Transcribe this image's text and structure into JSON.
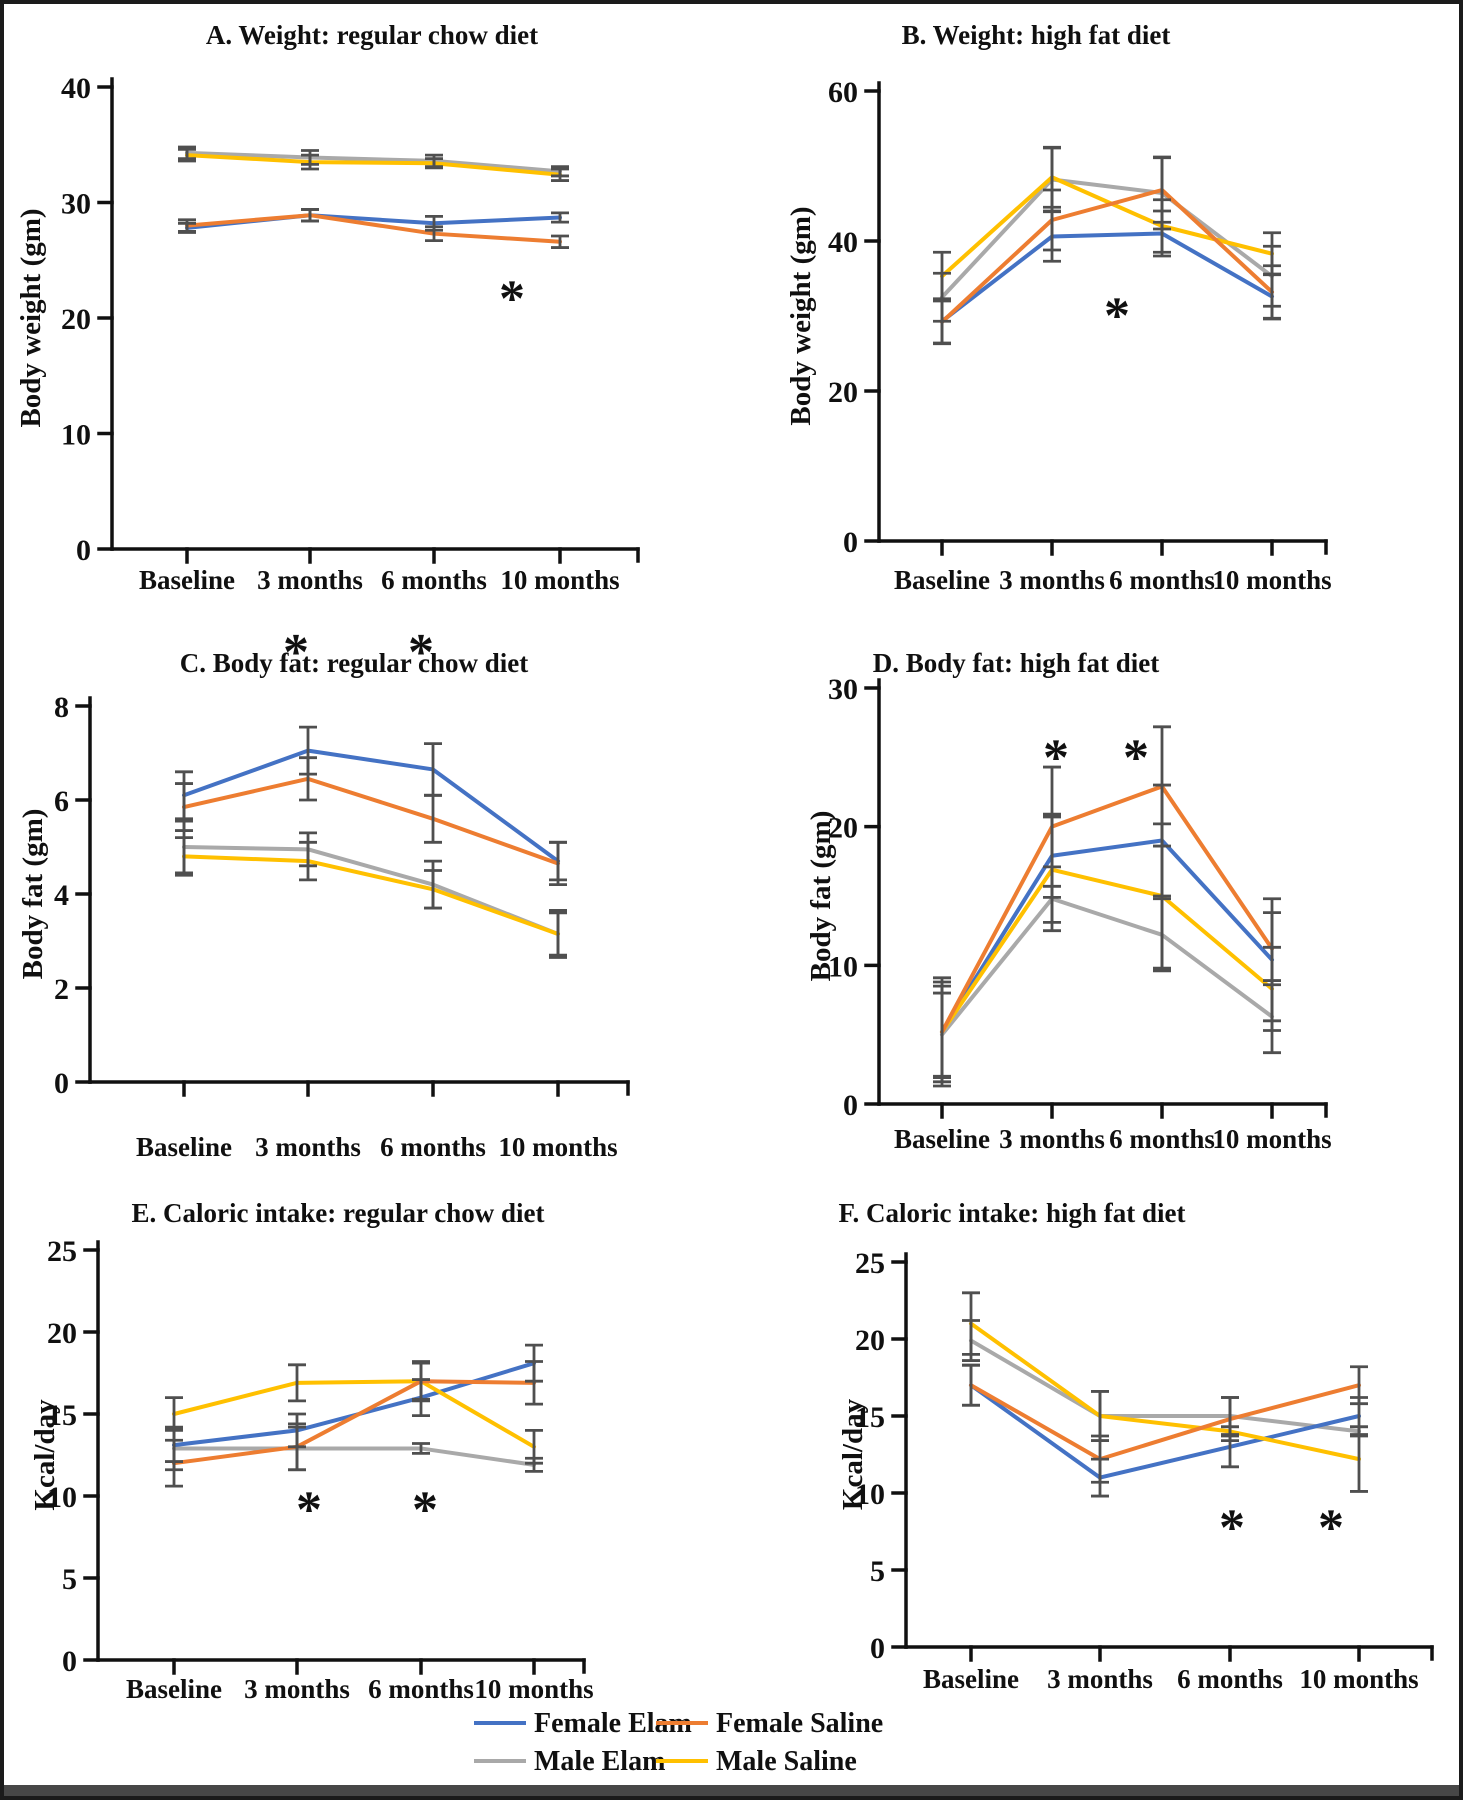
{
  "legend": {
    "items": [
      {
        "label": "Female Elam",
        "color": "#4472C4"
      },
      {
        "label": "Female Saline",
        "color": "#ED7D31"
      },
      {
        "label": "Male Elam",
        "color": "#A9A9A9"
      },
      {
        "label": "Male Saline",
        "color": "#FFC000"
      }
    ]
  },
  "chart_data": [
    {
      "id": "A",
      "type": "line",
      "title": "A. Weight: regular chow diet",
      "ylabel": "Body weight (gm)",
      "xlabel": "",
      "categories": [
        "Baseline",
        "3 months",
        "6 months",
        "10 months"
      ],
      "ylim": [
        0,
        40
      ],
      "ytick_step": 10,
      "grid": false,
      "legend_position": "none",
      "series": [
        {
          "name": "Female Elam",
          "color": "#4472C4",
          "values": [
            27.8,
            28.9,
            28.2,
            28.7
          ],
          "errors": [
            0.4,
            0.5,
            0.6,
            0.4
          ]
        },
        {
          "name": "Female Saline",
          "color": "#ED7D31",
          "values": [
            28.0,
            28.9,
            27.3,
            26.6
          ],
          "errors": [
            0.5,
            0.5,
            0.6,
            0.5
          ]
        },
        {
          "name": "Male Elam",
          "color": "#A9A9A9",
          "values": [
            34.3,
            33.9,
            33.6,
            32.7
          ],
          "errors": [
            0.5,
            0.6,
            0.5,
            0.4
          ]
        },
        {
          "name": "Male Saline",
          "color": "#FFC000",
          "values": [
            34.1,
            33.5,
            33.4,
            32.4
          ],
          "errors": [
            0.5,
            0.6,
            0.4,
            0.5
          ]
        }
      ],
      "significance_asterisks": [
        {
          "category": "10 months",
          "y": 22.3
        }
      ]
    },
    {
      "id": "B",
      "type": "line",
      "title": "B. Weight: high fat diet",
      "ylabel": "Body weight (gm)",
      "xlabel": "",
      "categories": [
        "Baseline",
        "3 months",
        "6 months",
        "10 months"
      ],
      "ylim": [
        0,
        60
      ],
      "ytick_step": 20,
      "grid": false,
      "legend_position": "none",
      "series": [
        {
          "name": "Female Elam",
          "color": "#4472C4",
          "values": [
            29.3,
            40.6,
            41.0,
            32.6
          ],
          "errors": [
            3.0,
            3.3,
            3.0,
            3.0
          ]
        },
        {
          "name": "Female Saline",
          "color": "#ED7D31",
          "values": [
            29.2,
            42.8,
            46.8,
            33.2
          ],
          "errors": [
            2.8,
            4.0,
            4.3,
            3.5
          ]
        },
        {
          "name": "Male Elam",
          "color": "#A9A9A9",
          "values": [
            32.5,
            48.2,
            46.4,
            35.3
          ],
          "errors": [
            3.2,
            4.2,
            4.8,
            4.0
          ]
        },
        {
          "name": "Male Saline",
          "color": "#FFC000",
          "values": [
            35.3,
            48.5,
            42.0,
            38.3
          ],
          "errors": [
            3.2,
            4.0,
            3.5,
            2.8
          ]
        }
      ],
      "significance_asterisks": [
        {
          "category": "6 months",
          "y": 31.0
        }
      ]
    },
    {
      "id": "C",
      "type": "line",
      "title": "C. Body fat: regular chow diet",
      "ylabel": "Body fat (gm)",
      "xlabel": "",
      "categories": [
        "Baseline",
        "3 months",
        "6 months",
        "10 months"
      ],
      "ylim": [
        0,
        8
      ],
      "ytick_step": 2,
      "grid": false,
      "legend_position": "none",
      "series": [
        {
          "name": "Female Elam",
          "color": "#4472C4",
          "values": [
            6.1,
            7.05,
            6.65,
            4.7
          ],
          "errors": [
            0.5,
            0.5,
            0.55,
            0.4
          ]
        },
        {
          "name": "Female Saline",
          "color": "#ED7D31",
          "values": [
            5.85,
            6.45,
            5.6,
            4.65
          ],
          "errors": [
            0.5,
            0.45,
            0.5,
            0.45
          ]
        },
        {
          "name": "Male Elam",
          "color": "#A9A9A9",
          "values": [
            5.0,
            4.95,
            4.2,
            3.15
          ],
          "errors": [
            0.55,
            0.35,
            0.5,
            0.5
          ]
        },
        {
          "name": "Male Saline",
          "color": "#FFC000",
          "values": [
            4.8,
            4.7,
            4.1,
            3.15
          ],
          "errors": [
            0.4,
            0.4,
            0.4,
            0.45
          ]
        }
      ],
      "significance_asterisks": [
        {
          "category": "3 months",
          "y": 9.3
        },
        {
          "category": "6 months",
          "y": 9.3
        }
      ]
    },
    {
      "id": "D",
      "type": "line",
      "title": "D. Body fat: high fat diet",
      "ylabel": "Body fat (gm)",
      "xlabel": "",
      "categories": [
        "Baseline",
        "3 months",
        "6 months",
        "10 months"
      ],
      "ylim": [
        0,
        30
      ],
      "ytick_step": 10,
      "grid": false,
      "legend_position": "none",
      "series": [
        {
          "name": "Female Elam",
          "color": "#4472C4",
          "values": [
            5.2,
            17.9,
            19.0,
            10.4
          ],
          "errors": [
            3.3,
            3.0,
            4.0,
            4.4
          ]
        },
        {
          "name": "Female Saline",
          "color": "#ED7D31",
          "values": [
            5.2,
            20.0,
            22.9,
            11.2
          ],
          "errors": [
            3.9,
            4.3,
            4.3,
            2.6
          ]
        },
        {
          "name": "Male Elam",
          "color": "#A9A9A9",
          "values": [
            5.0,
            14.8,
            12.2,
            6.3
          ],
          "errors": [
            3.0,
            2.3,
            2.6,
            2.6
          ]
        },
        {
          "name": "Male Saline",
          "color": "#FFC000",
          "values": [
            5.2,
            16.9,
            15.0,
            8.3
          ],
          "errors": [
            3.6,
            3.8,
            5.2,
            3.0
          ]
        }
      ],
      "significance_asterisks": [
        {
          "category": "3 months",
          "y": 25.5
        },
        {
          "category": "6 months",
          "y": 25.5
        }
      ]
    },
    {
      "id": "E",
      "type": "line",
      "title": "E. Caloric intake: regular chow diet",
      "ylabel": "Kcal/day",
      "xlabel": "",
      "categories": [
        "Baseline",
        "3 months",
        "6 months",
        "10 months"
      ],
      "ylim": [
        0,
        25
      ],
      "ytick_step": 5,
      "grid": false,
      "legend_position": "none",
      "series": [
        {
          "name": "Female Elam",
          "color": "#4472C4",
          "values": [
            13.1,
            14.0,
            16.0,
            18.1
          ],
          "errors": [
            1.0,
            1.0,
            1.1,
            1.1
          ]
        },
        {
          "name": "Female Saline",
          "color": "#ED7D31",
          "values": [
            12.0,
            13.0,
            17.0,
            16.9
          ],
          "errors": [
            1.4,
            1.4,
            1.2,
            1.3
          ]
        },
        {
          "name": "Male Elam",
          "color": "#A9A9A9",
          "values": [
            12.9,
            12.9,
            12.9,
            11.9
          ],
          "errors": [
            1.3,
            1.3,
            0.3,
            0.4
          ]
        },
        {
          "name": "Male Saline",
          "color": "#FFC000",
          "values": [
            15.0,
            16.9,
            17.0,
            13.0
          ],
          "errors": [
            1.0,
            1.1,
            1.1,
            1.0
          ]
        }
      ],
      "significance_asterisks": [
        {
          "category": "3 months",
          "y": 9.6
        },
        {
          "category": "6 months",
          "y": 9.6
        }
      ]
    },
    {
      "id": "F",
      "type": "line",
      "title": "F. Caloric intake: high fat diet",
      "ylabel": "Kcal/day",
      "xlabel": "",
      "categories": [
        "Baseline",
        "3 months",
        "6 months",
        "10 months"
      ],
      "ylim": [
        0,
        25
      ],
      "ytick_step": 5,
      "grid": false,
      "legend_position": "none",
      "series": [
        {
          "name": "Female Elam",
          "color": "#4472C4",
          "values": [
            17.0,
            11.0,
            13.0,
            15.0
          ],
          "errors": [
            1.3,
            1.2,
            1.3,
            1.2
          ]
        },
        {
          "name": "Female Saline",
          "color": "#ED7D31",
          "values": [
            17.0,
            12.2,
            14.8,
            17.0
          ],
          "errors": [
            1.3,
            1.5,
            1.4,
            1.2
          ]
        },
        {
          "name": "Male Elam",
          "color": "#A9A9A9",
          "values": [
            19.9,
            15.0,
            15.0,
            14.0
          ],
          "errors": [
            1.3,
            1.6,
            1.2,
            0.3
          ]
        },
        {
          "name": "Male Saline",
          "color": "#FFC000",
          "values": [
            21.0,
            15.0,
            14.0,
            12.2
          ],
          "errors": [
            2.0,
            1.6,
            0.3,
            2.1
          ]
        }
      ],
      "significance_asterisks": [
        {
          "category": "6 months",
          "y": 8.2
        },
        {
          "category": "10 months",
          "y": 8.2
        }
      ]
    }
  ]
}
